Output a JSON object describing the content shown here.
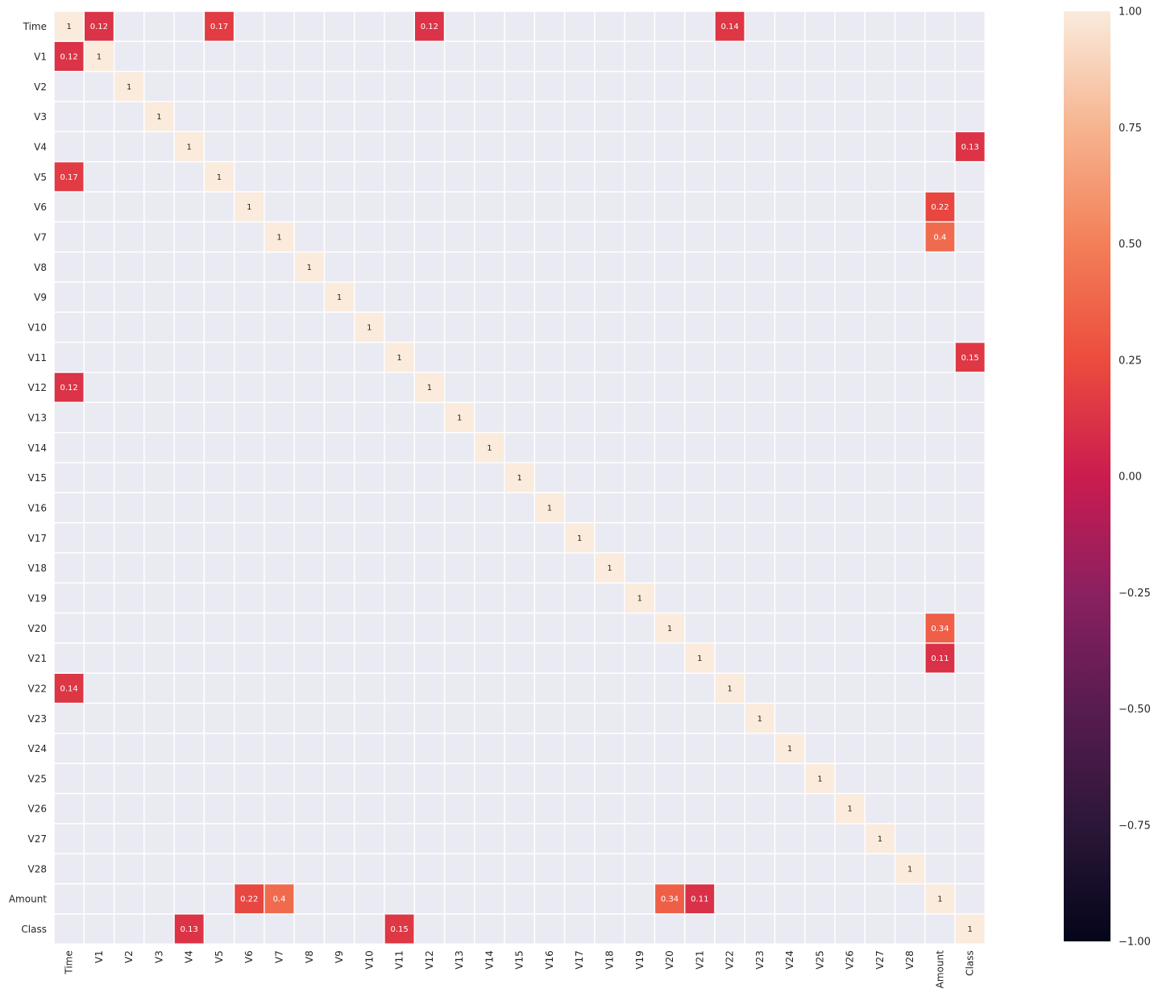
{
  "chart_data": {
    "type": "heatmap",
    "title": "",
    "xlabel": "",
    "ylabel": "",
    "labels": [
      "Time",
      "V1",
      "V2",
      "V3",
      "V4",
      "V5",
      "V6",
      "V7",
      "V8",
      "V9",
      "V10",
      "V11",
      "V12",
      "V13",
      "V14",
      "V15",
      "V16",
      "V17",
      "V18",
      "V19",
      "V20",
      "V21",
      "V22",
      "V23",
      "V24",
      "V25",
      "V26",
      "V27",
      "V28",
      "Amount",
      "Class"
    ],
    "value_range": [
      -1,
      1
    ],
    "colorbar_ticks": [
      "1.00",
      "0.75",
      "0.50",
      "0.25",
      "0.00",
      "−0.25",
      "−0.50",
      "−0.75",
      "−1.00"
    ],
    "colorbar_tick_values": [
      1,
      0.75,
      0.5,
      0.25,
      0,
      -0.25,
      -0.5,
      -0.75,
      -1
    ],
    "masked_cell_color": "#eaeaf2",
    "cells": [
      {
        "row": "Time",
        "col": "Time",
        "value": 1,
        "label": "1"
      },
      {
        "row": "Time",
        "col": "V1",
        "value": 0.12,
        "label": "0.12"
      },
      {
        "row": "Time",
        "col": "V5",
        "value": 0.17,
        "label": "0.17"
      },
      {
        "row": "Time",
        "col": "V12",
        "value": 0.12,
        "label": "0.12"
      },
      {
        "row": "Time",
        "col": "V22",
        "value": 0.14,
        "label": "0.14"
      },
      {
        "row": "V1",
        "col": "Time",
        "value": 0.12,
        "label": "0.12"
      },
      {
        "row": "V1",
        "col": "V1",
        "value": 1,
        "label": "1"
      },
      {
        "row": "V2",
        "col": "V2",
        "value": 1,
        "label": "1"
      },
      {
        "row": "V3",
        "col": "V3",
        "value": 1,
        "label": "1"
      },
      {
        "row": "V4",
        "col": "V4",
        "value": 1,
        "label": "1"
      },
      {
        "row": "V4",
        "col": "Class",
        "value": 0.13,
        "label": "0.13"
      },
      {
        "row": "V5",
        "col": "Time",
        "value": 0.17,
        "label": "0.17"
      },
      {
        "row": "V5",
        "col": "V5",
        "value": 1,
        "label": "1"
      },
      {
        "row": "V6",
        "col": "V6",
        "value": 1,
        "label": "1"
      },
      {
        "row": "V6",
        "col": "Amount",
        "value": 0.22,
        "label": "0.22"
      },
      {
        "row": "V7",
        "col": "V7",
        "value": 1,
        "label": "1"
      },
      {
        "row": "V7",
        "col": "Amount",
        "value": 0.4,
        "label": "0.4"
      },
      {
        "row": "V8",
        "col": "V8",
        "value": 1,
        "label": "1"
      },
      {
        "row": "V9",
        "col": "V9",
        "value": 1,
        "label": "1"
      },
      {
        "row": "V10",
        "col": "V10",
        "value": 1,
        "label": "1"
      },
      {
        "row": "V11",
        "col": "V11",
        "value": 1,
        "label": "1"
      },
      {
        "row": "V11",
        "col": "Class",
        "value": 0.15,
        "label": "0.15"
      },
      {
        "row": "V12",
        "col": "Time",
        "value": 0.12,
        "label": "0.12"
      },
      {
        "row": "V12",
        "col": "V12",
        "value": 1,
        "label": "1"
      },
      {
        "row": "V13",
        "col": "V13",
        "value": 1,
        "label": "1"
      },
      {
        "row": "V14",
        "col": "V14",
        "value": 1,
        "label": "1"
      },
      {
        "row": "V15",
        "col": "V15",
        "value": 1,
        "label": "1"
      },
      {
        "row": "V16",
        "col": "V16",
        "value": 1,
        "label": "1"
      },
      {
        "row": "V17",
        "col": "V17",
        "value": 1,
        "label": "1"
      },
      {
        "row": "V18",
        "col": "V18",
        "value": 1,
        "label": "1"
      },
      {
        "row": "V19",
        "col": "V19",
        "value": 1,
        "label": "1"
      },
      {
        "row": "V20",
        "col": "V20",
        "value": 1,
        "label": "1"
      },
      {
        "row": "V20",
        "col": "Amount",
        "value": 0.34,
        "label": "0.34"
      },
      {
        "row": "V21",
        "col": "V21",
        "value": 1,
        "label": "1"
      },
      {
        "row": "V21",
        "col": "Amount",
        "value": 0.11,
        "label": "0.11"
      },
      {
        "row": "V22",
        "col": "Time",
        "value": 0.14,
        "label": "0.14"
      },
      {
        "row": "V22",
        "col": "V22",
        "value": 1,
        "label": "1"
      },
      {
        "row": "V23",
        "col": "V23",
        "value": 1,
        "label": "1"
      },
      {
        "row": "V24",
        "col": "V24",
        "value": 1,
        "label": "1"
      },
      {
        "row": "V25",
        "col": "V25",
        "value": 1,
        "label": "1"
      },
      {
        "row": "V26",
        "col": "V26",
        "value": 1,
        "label": "1"
      },
      {
        "row": "V27",
        "col": "V27",
        "value": 1,
        "label": "1"
      },
      {
        "row": "V28",
        "col": "V28",
        "value": 1,
        "label": "1"
      },
      {
        "row": "Amount",
        "col": "V6",
        "value": 0.22,
        "label": "0.22"
      },
      {
        "row": "Amount",
        "col": "V7",
        "value": 0.4,
        "label": "0.4"
      },
      {
        "row": "Amount",
        "col": "V20",
        "value": 0.34,
        "label": "0.34"
      },
      {
        "row": "Amount",
        "col": "V21",
        "value": 0.11,
        "label": "0.11"
      },
      {
        "row": "Amount",
        "col": "Amount",
        "value": 1,
        "label": "1"
      },
      {
        "row": "Class",
        "col": "V4",
        "value": 0.13,
        "label": "0.13"
      },
      {
        "row": "Class",
        "col": "V11",
        "value": 0.15,
        "label": "0.15"
      },
      {
        "row": "Class",
        "col": "Class",
        "value": 1,
        "label": "1"
      }
    ]
  }
}
